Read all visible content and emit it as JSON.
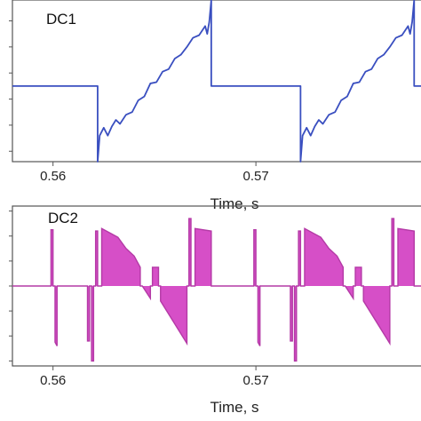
{
  "colors": {
    "dc1_line": "#3a4fc0",
    "dc2_fill": "#d64fc7",
    "dc2_line": "#b43aa6",
    "axis": "#555555"
  },
  "chart_data": [
    {
      "type": "line",
      "title": "DC1",
      "xlabel": "Time, s",
      "ylabel": "",
      "xlim": [
        0.558,
        0.5784
      ],
      "ylim": [
        -5.8,
        6.6
      ],
      "x_ticks": [
        0.56,
        0.57
      ],
      "x_tick_labels": [
        "0.56",
        "0.57"
      ],
      "y_ticks": [
        -5,
        -3,
        -1,
        1,
        3,
        5
      ],
      "y_tick_labels": [
        "",
        "",
        "",
        "",
        "",
        ""
      ],
      "grid": false,
      "legend": "none",
      "series": [
        {
          "x": [
            0.558,
            0.5622,
            0.5622,
            0.5623,
            0.5625,
            0.5627,
            0.5629,
            0.5631,
            0.5633,
            0.5636,
            0.5639,
            0.5642,
            0.5645,
            0.5648,
            0.5651,
            0.5654,
            0.5657,
            0.566,
            0.5663,
            0.5666,
            0.5669,
            0.5672,
            0.5675,
            0.5676,
            0.5677,
            0.5678,
            0.5678,
            0.5722,
            0.5722,
            0.5723,
            0.5725,
            0.5727,
            0.5729,
            0.5731,
            0.5733,
            0.5736,
            0.5739,
            0.5742,
            0.5745,
            0.5748,
            0.5751,
            0.5754,
            0.5757,
            0.576,
            0.5763,
            0.5766,
            0.5769,
            0.5772,
            0.5775,
            0.5776,
            0.5777,
            0.5778,
            0.5778,
            0.5784
          ],
          "y": [
            0,
            0,
            -5.8,
            -3.8,
            -3.2,
            -3.8,
            -3.1,
            -2.6,
            -2.9,
            -2.2,
            -2.0,
            -1.1,
            -0.8,
            0.2,
            0.3,
            1.1,
            1.3,
            2.1,
            2.4,
            3.0,
            3.7,
            3.9,
            4.6,
            4.0,
            4.9,
            6.6,
            0,
            0,
            -5.8,
            -3.8,
            -3.2,
            -3.8,
            -3.1,
            -2.6,
            -2.9,
            -2.2,
            -2.0,
            -1.1,
            -0.8,
            0.2,
            0.3,
            1.1,
            1.3,
            2.1,
            2.4,
            3.0,
            3.7,
            3.9,
            4.6,
            4.0,
            4.9,
            6.6,
            0,
            0
          ]
        }
      ]
    },
    {
      "type": "area",
      "title": "DC2",
      "xlabel": "Time, s",
      "ylabel": "",
      "xlim": [
        0.558,
        0.5784
      ],
      "ylim": [
        -6.4,
        6.4
      ],
      "x_ticks": [
        0.56,
        0.57
      ],
      "x_tick_labels": [
        "0.56",
        "0.57"
      ],
      "y_ticks": [
        -6,
        -4,
        -2,
        0,
        2,
        4,
        6
      ],
      "y_tick_labels": [
        "",
        "",
        "",
        "",
        "",
        "",
        ""
      ],
      "grid": false,
      "legend": "none",
      "series": [
        {
          "x": [
            0.558,
            0.5599,
            0.5599,
            0.56,
            0.56,
            0.5601,
            0.5601,
            0.5602,
            0.5602,
            0.5617,
            0.5617,
            0.5618,
            0.5618,
            0.5619,
            0.5619,
            0.562,
            0.562,
            0.5621,
            0.5621,
            0.5622,
            0.5622,
            0.5624,
            0.5624,
            0.5632,
            0.5636,
            0.564,
            0.5643,
            0.5643,
            0.5644,
            0.5648,
            0.5648,
            0.5649,
            0.5649,
            0.5652,
            0.5652,
            0.5653,
            0.5653,
            0.5666,
            0.5666,
            0.5667,
            0.5667,
            0.5668,
            0.5668,
            0.567,
            0.567,
            0.5678,
            0.5678,
            0.5699,
            0.5699,
            0.57,
            0.57,
            0.5701,
            0.5701,
            0.5702,
            0.5702,
            0.5717,
            0.5717,
            0.5718,
            0.5718,
            0.5719,
            0.5719,
            0.572,
            0.572,
            0.5721,
            0.5721,
            0.5722,
            0.5722,
            0.5724,
            0.5724,
            0.5732,
            0.5736,
            0.574,
            0.5743,
            0.5743,
            0.5744,
            0.5748,
            0.5748,
            0.5749,
            0.5749,
            0.5752,
            0.5752,
            0.5753,
            0.5753,
            0.5766,
            0.5766,
            0.5767,
            0.5767,
            0.5768,
            0.5768,
            0.577,
            0.577,
            0.5778,
            0.5778,
            0.5784
          ],
          "y": [
            0,
            0,
            4.5,
            4.5,
            0,
            0,
            -4.5,
            -4.8,
            0,
            0,
            -4.4,
            -4.4,
            0,
            0,
            -6,
            -6,
            0,
            0,
            4.4,
            4.4,
            0,
            0,
            4.6,
            3.9,
            3.0,
            2.4,
            1.5,
            0,
            0,
            -1.0,
            0,
            0,
            1.5,
            1.5,
            0,
            0,
            -1.2,
            -4.6,
            0,
            0,
            5.4,
            5.4,
            0,
            0,
            4.6,
            4.4,
            0,
            0,
            4.5,
            4.5,
            0,
            0,
            -4.5,
            -4.8,
            0,
            0,
            -4.4,
            -4.4,
            0,
            0,
            -6,
            -6,
            0,
            0,
            4.4,
            4.4,
            0,
            0,
            4.6,
            3.9,
            3.0,
            2.4,
            1.5,
            0,
            0,
            -1.0,
            0,
            0,
            1.5,
            1.5,
            0,
            0,
            -1.2,
            -4.6,
            0,
            0,
            5.4,
            5.4,
            0,
            0,
            4.6,
            4.4,
            0,
            0
          ]
        }
      ]
    }
  ]
}
